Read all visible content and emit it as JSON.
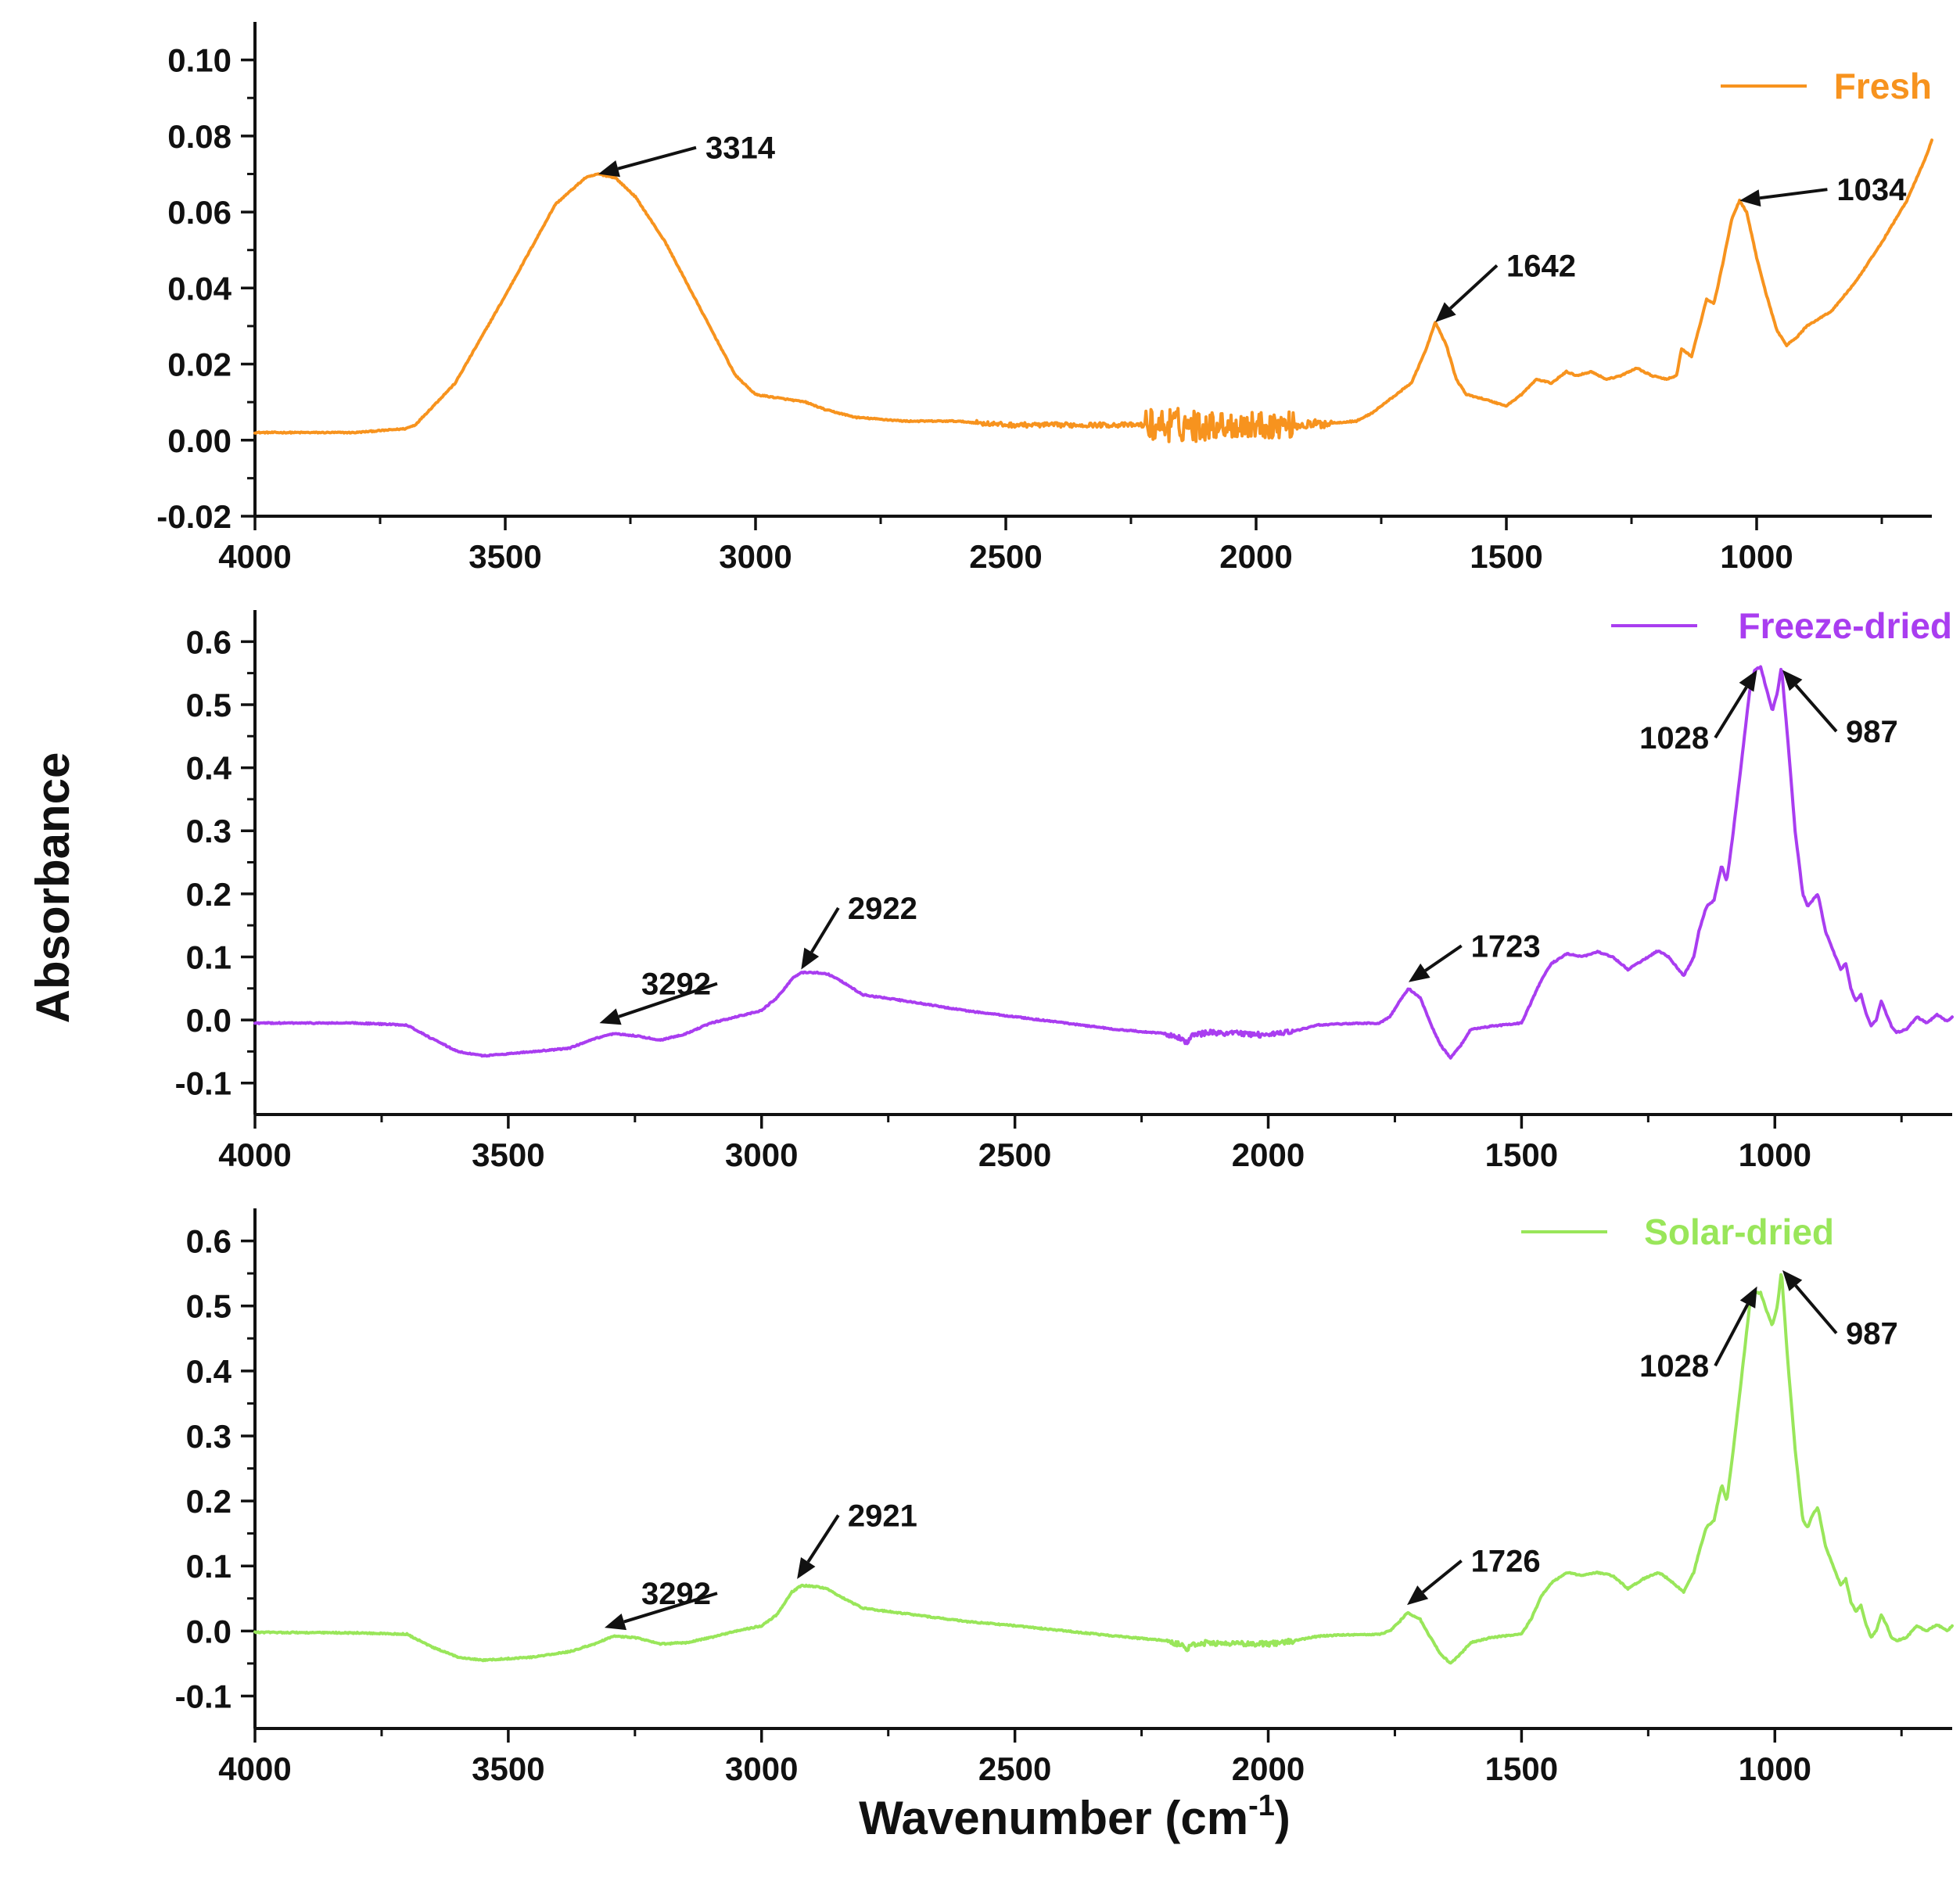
{
  "figure": {
    "shared_ylabel": "Absorbance",
    "shared_xlabel": "Wavenumber (cm",
    "shared_xlabel_sup": "-1",
    "shared_xlabel_close": ")"
  },
  "chart_data": [
    {
      "type": "line",
      "name": "fresh",
      "legend": "Fresh",
      "color": "#F7931E",
      "xlim": [
        4000,
        650
      ],
      "ylim": [
        -0.02,
        0.11
      ],
      "xticks": [
        4000,
        3500,
        3000,
        2500,
        2000,
        1500,
        1000
      ],
      "xtick_labels": [
        "4000",
        "3500",
        "3000",
        "2500",
        "2000",
        "1500",
        "1000"
      ],
      "yticks": [
        -0.02,
        0.0,
        0.02,
        0.04,
        0.06,
        0.08,
        0.1
      ],
      "ytick_labels": [
        "-0.02",
        "0.00",
        "0.02",
        "0.04",
        "0.06",
        "0.08",
        "0.10"
      ],
      "noise": [
        {
          "from": 2560,
          "to": 2220,
          "amp": 0.0006
        },
        {
          "from": 2220,
          "to": 2100,
          "amp": 0.0045
        },
        {
          "from": 2100,
          "to": 1920,
          "amp": 0.0035
        },
        {
          "from": 1920,
          "to": 1850,
          "amp": 0.0012
        }
      ],
      "x": [
        4000,
        3800,
        3700,
        3680,
        3600,
        3500,
        3400,
        3340,
        3314,
        3280,
        3240,
        3180,
        3100,
        3040,
        3000,
        2950,
        2900,
        2860,
        2800,
        2700,
        2600,
        2500,
        2400,
        2300,
        2200,
        2100,
        2000,
        1900,
        1800,
        1770,
        1740,
        1720,
        1690,
        1660,
        1642,
        1620,
        1600,
        1580,
        1550,
        1500,
        1470,
        1440,
        1410,
        1380,
        1360,
        1330,
        1300,
        1270,
        1240,
        1210,
        1180,
        1160,
        1150,
        1130,
        1110,
        1100,
        1085,
        1070,
        1050,
        1034,
        1020,
        1000,
        980,
        960,
        940,
        920,
        900,
        850,
        800,
        750,
        700,
        660,
        650
      ],
      "y": [
        0.002,
        0.002,
        0.003,
        0.004,
        0.015,
        0.038,
        0.062,
        0.069,
        0.07,
        0.069,
        0.064,
        0.052,
        0.032,
        0.017,
        0.012,
        0.011,
        0.01,
        0.008,
        0.006,
        0.005,
        0.005,
        0.004,
        0.004,
        0.004,
        0.004,
        0.004,
        0.004,
        0.004,
        0.005,
        0.007,
        0.01,
        0.012,
        0.015,
        0.024,
        0.031,
        0.025,
        0.016,
        0.012,
        0.011,
        0.009,
        0.012,
        0.016,
        0.015,
        0.018,
        0.017,
        0.018,
        0.016,
        0.017,
        0.019,
        0.017,
        0.016,
        0.017,
        0.024,
        0.022,
        0.032,
        0.037,
        0.036,
        0.045,
        0.058,
        0.063,
        0.06,
        0.048,
        0.038,
        0.029,
        0.025,
        0.027,
        0.03,
        0.034,
        0.042,
        0.052,
        0.063,
        0.075,
        0.079
      ],
      "annotations": [
        {
          "label": "3314",
          "x": 3314,
          "y": 0.07,
          "text_x": 3100,
          "text_y": 0.079,
          "anchor": "start"
        },
        {
          "label": "1642",
          "x": 1642,
          "y": 0.031,
          "text_x": 1500,
          "text_y": 0.048,
          "anchor": "start"
        },
        {
          "label": "1034",
          "x": 1034,
          "y": 0.063,
          "text_x": 840,
          "text_y": 0.068,
          "anchor": "start"
        }
      ]
    },
    {
      "type": "line",
      "name": "freeze-dried",
      "legend": "Freeze-dried",
      "color": "#A93DF0",
      "xlim": [
        4000,
        650
      ],
      "ylim": [
        -0.15,
        0.65
      ],
      "xticks": [
        4000,
        3500,
        3000,
        2500,
        2000,
        1500,
        1000
      ],
      "xtick_labels": [
        "4000",
        "3500",
        "3000",
        "2500",
        "2000",
        "1500",
        "1000"
      ],
      "yticks": [
        -0.1,
        0.0,
        0.1,
        0.2,
        0.3,
        0.4,
        0.5,
        0.6
      ],
      "ytick_labels": [
        "-0.1",
        "0.0",
        "0.1",
        "0.2",
        "0.3",
        "0.4",
        "0.5",
        "0.6"
      ],
      "noise": [
        {
          "from": 2200,
          "to": 1950,
          "amp": 0.004
        }
      ],
      "x": [
        4000,
        3800,
        3700,
        3650,
        3600,
        3550,
        3450,
        3380,
        3330,
        3292,
        3250,
        3200,
        3150,
        3100,
        3050,
        3000,
        2970,
        2940,
        2922,
        2890,
        2870,
        2850,
        2800,
        2700,
        2600,
        2500,
        2400,
        2300,
        2200,
        2170,
        2160,
        2150,
        2120,
        2050,
        2000,
        1950,
        1900,
        1850,
        1780,
        1760,
        1740,
        1723,
        1700,
        1680,
        1660,
        1640,
        1620,
        1600,
        1560,
        1500,
        1480,
        1460,
        1440,
        1410,
        1380,
        1350,
        1320,
        1290,
        1260,
        1230,
        1210,
        1180,
        1160,
        1150,
        1135,
        1120,
        1105,
        1095,
        1085,
        1070,
        1050,
        1040,
        1028,
        1015,
        1005,
        995,
        987,
        975,
        960,
        945,
        935,
        925,
        915,
        900,
        880,
        870,
        860,
        850,
        840,
        830,
        820,
        810,
        800,
        790,
        780,
        770,
        760,
        740,
        720,
        700,
        680,
        660,
        650
      ],
      "y": [
        -0.005,
        -0.005,
        -0.008,
        -0.03,
        -0.05,
        -0.057,
        -0.05,
        -0.045,
        -0.03,
        -0.022,
        -0.025,
        -0.032,
        -0.022,
        -0.005,
        0.005,
        0.015,
        0.035,
        0.065,
        0.075,
        0.075,
        0.073,
        0.065,
        0.04,
        0.028,
        0.015,
        0.005,
        -0.005,
        -0.015,
        -0.022,
        -0.03,
        -0.038,
        -0.025,
        -0.02,
        -0.022,
        -0.024,
        -0.018,
        -0.008,
        -0.006,
        -0.005,
        0.005,
        0.03,
        0.05,
        0.035,
        -0.005,
        -0.04,
        -0.06,
        -0.04,
        -0.015,
        -0.01,
        -0.005,
        0.03,
        0.065,
        0.09,
        0.105,
        0.1,
        0.108,
        0.1,
        0.08,
        0.095,
        0.11,
        0.1,
        0.07,
        0.1,
        0.14,
        0.18,
        0.19,
        0.245,
        0.22,
        0.28,
        0.38,
        0.52,
        0.555,
        0.56,
        0.52,
        0.49,
        0.52,
        0.56,
        0.45,
        0.3,
        0.2,
        0.18,
        0.19,
        0.2,
        0.14,
        0.1,
        0.08,
        0.09,
        0.05,
        0.03,
        0.04,
        0.01,
        -0.01,
        0.0,
        0.03,
        0.01,
        -0.01,
        -0.02,
        -0.015,
        0.005,
        -0.005,
        0.008,
        -0.002,
        0.005
      ],
      "annotations": [
        {
          "label": "2922",
          "x": 2922,
          "y": 0.08,
          "text_x": 2830,
          "text_y": 0.19,
          "anchor": "start"
        },
        {
          "label": "3292",
          "x": 3320,
          "y": -0.005,
          "text_x": 3100,
          "text_y": 0.07,
          "anchor": "end"
        },
        {
          "label": "1723",
          "x": 1723,
          "y": 0.06,
          "text_x": 1600,
          "text_y": 0.13,
          "anchor": "start"
        },
        {
          "label": "1028",
          "x": 1035,
          "y": 0.555,
          "text_x": 1130,
          "text_y": 0.46,
          "anchor": "end"
        },
        {
          "label": "987",
          "x": 985,
          "y": 0.555,
          "text_x": 860,
          "text_y": 0.47,
          "anchor": "start"
        }
      ]
    },
    {
      "type": "line",
      "name": "solar-dried",
      "legend": "Solar-dried",
      "color": "#99E65A",
      "xlim": [
        4000,
        650
      ],
      "ylim": [
        -0.15,
        0.65
      ],
      "xticks": [
        4000,
        3500,
        3000,
        2500,
        2000,
        1500,
        1000
      ],
      "xtick_labels": [
        "4000",
        "3500",
        "3000",
        "2500",
        "2000",
        "1500",
        "1000"
      ],
      "yticks": [
        -0.1,
        0.0,
        0.1,
        0.2,
        0.3,
        0.4,
        0.5,
        0.6
      ],
      "ytick_labels": [
        "-0.1",
        "0.0",
        "0.1",
        "0.2",
        "0.3",
        "0.4",
        "0.5",
        "0.6"
      ],
      "noise": [
        {
          "from": 2200,
          "to": 1950,
          "amp": 0.004
        }
      ],
      "x": [
        4000,
        3800,
        3700,
        3650,
        3600,
        3550,
        3450,
        3380,
        3330,
        3292,
        3250,
        3200,
        3150,
        3100,
        3050,
        3000,
        2970,
        2940,
        2921,
        2890,
        2870,
        2850,
        2800,
        2700,
        2600,
        2500,
        2400,
        2300,
        2200,
        2170,
        2160,
        2150,
        2120,
        2050,
        2000,
        1950,
        1900,
        1850,
        1780,
        1760,
        1740,
        1726,
        1700,
        1680,
        1660,
        1640,
        1620,
        1600,
        1560,
        1500,
        1480,
        1460,
        1440,
        1410,
        1380,
        1350,
        1320,
        1290,
        1260,
        1230,
        1210,
        1180,
        1160,
        1150,
        1135,
        1120,
        1105,
        1095,
        1085,
        1070,
        1050,
        1040,
        1028,
        1015,
        1005,
        995,
        987,
        975,
        960,
        945,
        935,
        925,
        915,
        900,
        880,
        870,
        860,
        850,
        840,
        830,
        820,
        810,
        800,
        790,
        780,
        770,
        760,
        740,
        720,
        700,
        680,
        660,
        650
      ],
      "y": [
        -0.002,
        -0.003,
        -0.005,
        -0.025,
        -0.04,
        -0.045,
        -0.04,
        -0.032,
        -0.02,
        -0.008,
        -0.01,
        -0.02,
        -0.018,
        -0.01,
        0.0,
        0.008,
        0.025,
        0.06,
        0.07,
        0.068,
        0.065,
        0.055,
        0.035,
        0.025,
        0.015,
        0.008,
        0.0,
        -0.008,
        -0.015,
        -0.022,
        -0.028,
        -0.02,
        -0.018,
        -0.02,
        -0.02,
        -0.015,
        -0.008,
        -0.006,
        -0.005,
        0.0,
        0.015,
        0.028,
        0.018,
        -0.01,
        -0.035,
        -0.05,
        -0.035,
        -0.018,
        -0.01,
        -0.005,
        0.02,
        0.055,
        0.075,
        0.09,
        0.085,
        0.09,
        0.085,
        0.065,
        0.08,
        0.09,
        0.08,
        0.06,
        0.09,
        0.12,
        0.16,
        0.17,
        0.225,
        0.2,
        0.26,
        0.36,
        0.5,
        0.52,
        0.52,
        0.49,
        0.47,
        0.5,
        0.555,
        0.42,
        0.28,
        0.17,
        0.16,
        0.18,
        0.19,
        0.13,
        0.09,
        0.07,
        0.08,
        0.045,
        0.03,
        0.04,
        0.01,
        -0.01,
        0.0,
        0.025,
        0.01,
        -0.01,
        -0.015,
        -0.01,
        0.008,
        0.0,
        0.01,
        0.0,
        0.008
      ],
      "annotations": [
        {
          "label": "2921",
          "x": 2930,
          "y": 0.08,
          "text_x": 2830,
          "text_y": 0.19,
          "anchor": "start"
        },
        {
          "label": "3292",
          "x": 3310,
          "y": 0.005,
          "text_x": 3100,
          "text_y": 0.07,
          "anchor": "end"
        },
        {
          "label": "1726",
          "x": 1726,
          "y": 0.04,
          "text_x": 1600,
          "text_y": 0.12,
          "anchor": "start"
        },
        {
          "label": "1028",
          "x": 1035,
          "y": 0.53,
          "text_x": 1130,
          "text_y": 0.42,
          "anchor": "end"
        },
        {
          "label": "987",
          "x": 985,
          "y": 0.555,
          "text_x": 860,
          "text_y": 0.47,
          "anchor": "start"
        }
      ]
    }
  ]
}
